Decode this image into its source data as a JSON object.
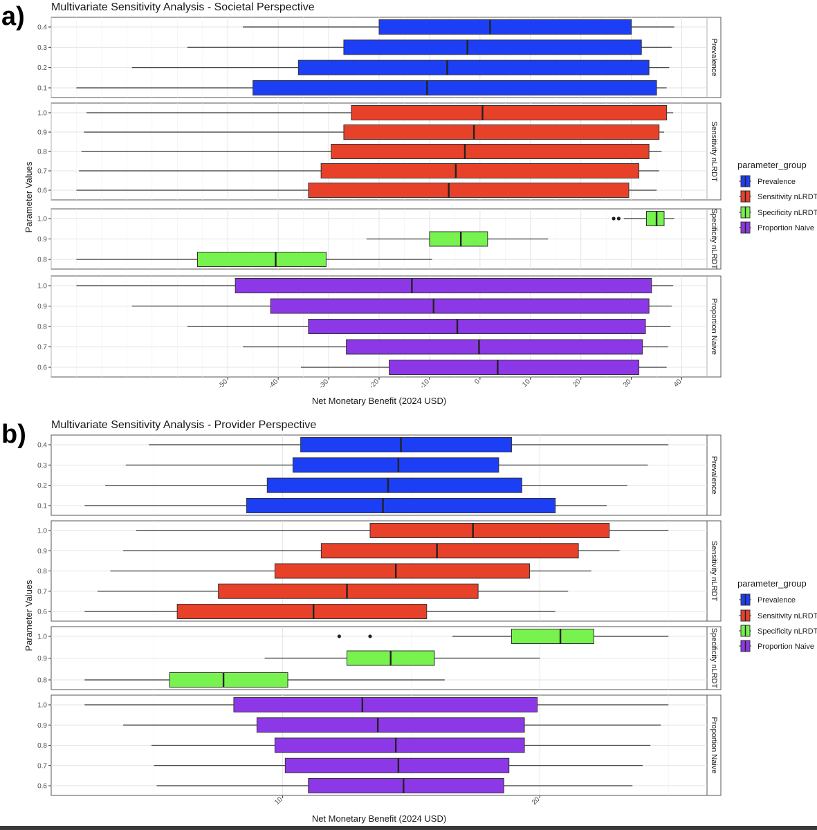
{
  "figure": {
    "panels": [
      {
        "label": "a)",
        "title": "Multivariate Sensitivity Analysis - Societal Perspective"
      },
      {
        "label": "b)",
        "title": "Multivariate Sensitivity Analysis - Provider Perspective"
      }
    ],
    "colors": {
      "Prevalence": "#1c3ff5",
      "Sensitivity nLRDT": "#e8412a",
      "Specificity nLRDT": "#77f24e",
      "Proportion Naive": "#8d38e6"
    }
  },
  "chart_data": [
    {
      "type": "boxplot",
      "orientation": "horizontal",
      "title": "Multivariate Sensitivity Analysis - Societal Perspective",
      "xlabel": "Net Monetary Benefit (2024 USD)",
      "ylabel": "Parameter Values",
      "xlim": [
        -85,
        45
      ],
      "xticks": [
        -50,
        -40,
        -30,
        -20,
        -10,
        0,
        10,
        20,
        30,
        40
      ],
      "legend": {
        "title": "parameter_group",
        "position": "right",
        "entries": [
          "Prevalence",
          "Sensitivity nLRDT",
          "Specificity nLRDT",
          "Proportion Naive"
        ]
      },
      "facets": [
        {
          "name": "Prevalence",
          "rows": [
            {
              "value": "0.4",
              "whisker_low": -47,
              "q1": -20,
              "median": 2,
              "q3": 30,
              "whisker_high": 38.5
            },
            {
              "value": "0.3",
              "whisker_low": -58,
              "q1": -27,
              "median": -2.5,
              "q3": 32,
              "whisker_high": 38
            },
            {
              "value": "0.2",
              "whisker_low": -69,
              "q1": -36,
              "median": -6.5,
              "q3": 33.5,
              "whisker_high": 37.5
            },
            {
              "value": "0.1",
              "whisker_low": -80,
              "q1": -45,
              "median": -10.5,
              "q3": 35,
              "whisker_high": 37
            }
          ]
        },
        {
          "name": "Sensitivity nLRDT",
          "rows": [
            {
              "value": "1.0",
              "whisker_low": -78,
              "q1": -25.5,
              "median": 0.5,
              "q3": 37,
              "whisker_high": 38.3
            },
            {
              "value": "0.9",
              "whisker_low": -78.5,
              "q1": -27,
              "median": -1.2,
              "q3": 35.5,
              "whisker_high": 36.5
            },
            {
              "value": "0.8",
              "whisker_low": -79,
              "q1": -29.5,
              "median": -3,
              "q3": 33.5,
              "whisker_high": 36
            },
            {
              "value": "0.7",
              "whisker_low": -79.5,
              "q1": -31.5,
              "median": -4.8,
              "q3": 31.5,
              "whisker_high": 35.5
            },
            {
              "value": "0.6",
              "whisker_low": -80,
              "q1": -34,
              "median": -6.2,
              "q3": 29.5,
              "whisker_high": 35
            }
          ]
        },
        {
          "name": "Specificity nLRDT",
          "rows": [
            {
              "value": "1.0",
              "whisker_low": 28.5,
              "q1": 33,
              "median": 35,
              "q3": 36.5,
              "whisker_high": 38.5,
              "outliers": [
                26.5,
                27.5
              ]
            },
            {
              "value": "0.9",
              "whisker_low": -22.5,
              "q1": -10,
              "median": -3.8,
              "q3": 1.5,
              "whisker_high": 13.5
            },
            {
              "value": "0.8",
              "whisker_low": -80,
              "q1": -56,
              "median": -40.5,
              "q3": -30.5,
              "whisker_high": -9.5
            }
          ]
        },
        {
          "name": "Proportion Naive",
          "rows": [
            {
              "value": "1.0",
              "whisker_low": -80,
              "q1": -48.5,
              "median": -13.5,
              "q3": 34,
              "whisker_high": 38.3
            },
            {
              "value": "0.9",
              "whisker_low": -69,
              "q1": -41.5,
              "median": -9.2,
              "q3": 33.5,
              "whisker_high": 38
            },
            {
              "value": "0.8",
              "whisker_low": -58,
              "q1": -34,
              "median": -4.5,
              "q3": 32.8,
              "whisker_high": 37.8
            },
            {
              "value": "0.7",
              "whisker_low": -47,
              "q1": -26.5,
              "median": -0.2,
              "q3": 32.2,
              "whisker_high": 37.3
            },
            {
              "value": "0.6",
              "whisker_low": -35.5,
              "q1": -18,
              "median": 3.5,
              "q3": 31.5,
              "whisker_high": 37
            }
          ]
        }
      ]
    },
    {
      "type": "boxplot",
      "orientation": "horizontal",
      "title": "Multivariate Sensitivity Analysis - Provider Perspective",
      "xlabel": "Net Monetary Benefit (2024 USD)",
      "ylabel": "Parameter Values",
      "xlim": [
        1,
        26.5
      ],
      "xticks": [
        10,
        20
      ],
      "legend": {
        "title": "parameter_group",
        "position": "right",
        "entries": [
          "Prevalence",
          "Sensitivity nLRDT",
          "Specificity nLRDT",
          "Proportion Naive"
        ]
      },
      "facets": [
        {
          "name": "Prevalence",
          "rows": [
            {
              "value": "0.4",
              "whisker_low": 4.8,
              "q1": 10.7,
              "median": 14.6,
              "q3": 18.9,
              "whisker_high": 25
            },
            {
              "value": "0.3",
              "whisker_low": 3.9,
              "q1": 10.4,
              "median": 14.5,
              "q3": 18.4,
              "whisker_high": 24.2
            },
            {
              "value": "0.2",
              "whisker_low": 3.1,
              "q1": 9.4,
              "median": 14.1,
              "q3": 19.3,
              "whisker_high": 23.4
            },
            {
              "value": "0.1",
              "whisker_low": 2.3,
              "q1": 8.6,
              "median": 13.9,
              "q3": 20.6,
              "whisker_high": 22.6
            }
          ]
        },
        {
          "name": "Sensitivity nLRDT",
          "rows": [
            {
              "value": "1.0",
              "whisker_low": 4.3,
              "q1": 13.4,
              "median": 17.4,
              "q3": 22.7,
              "whisker_high": 25
            },
            {
              "value": "0.9",
              "whisker_low": 3.8,
              "q1": 11.5,
              "median": 16,
              "q3": 21.5,
              "whisker_high": 23.1
            },
            {
              "value": "0.8",
              "whisker_low": 3.3,
              "q1": 9.7,
              "median": 14.4,
              "q3": 19.6,
              "whisker_high": 22
            },
            {
              "value": "0.7",
              "whisker_low": 2.8,
              "q1": 7.5,
              "median": 12.5,
              "q3": 17.6,
              "whisker_high": 21.1
            },
            {
              "value": "0.6",
              "whisker_low": 2.3,
              "q1": 5.9,
              "median": 11.2,
              "q3": 15.6,
              "whisker_high": 20.6
            }
          ]
        },
        {
          "name": "Specificity nLRDT",
          "rows": [
            {
              "value": "1.0",
              "whisker_low": 16.6,
              "q1": 18.9,
              "median": 20.8,
              "q3": 22.1,
              "whisker_high": 25,
              "outliers": [
                12.2,
                13.4
              ]
            },
            {
              "value": "0.9",
              "whisker_low": 9.3,
              "q1": 12.5,
              "median": 14.2,
              "q3": 15.9,
              "whisker_high": 20
            },
            {
              "value": "0.8",
              "whisker_low": 2.3,
              "q1": 5.6,
              "median": 7.7,
              "q3": 10.2,
              "whisker_high": 16.3
            }
          ]
        },
        {
          "name": "Proportion Naive",
          "rows": [
            {
              "value": "1.0",
              "whisker_low": 2.3,
              "q1": 8.1,
              "median": 13.1,
              "q3": 19.9,
              "whisker_high": 25
            },
            {
              "value": "0.9",
              "whisker_low": 3.8,
              "q1": 9,
              "median": 13.7,
              "q3": 19.4,
              "whisker_high": 24.7
            },
            {
              "value": "0.8",
              "whisker_low": 4.9,
              "q1": 9.7,
              "median": 14.4,
              "q3": 19.4,
              "whisker_high": 24.3
            },
            {
              "value": "0.7",
              "whisker_low": 5,
              "q1": 10.1,
              "median": 14.5,
              "q3": 18.8,
              "whisker_high": 24
            },
            {
              "value": "0.6",
              "whisker_low": 5.1,
              "q1": 11,
              "median": 14.7,
              "q3": 18.6,
              "whisker_high": 23.6
            }
          ]
        }
      ]
    }
  ]
}
